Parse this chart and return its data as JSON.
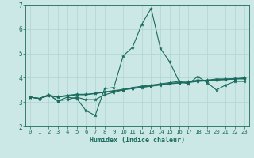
{
  "title": "",
  "xlabel": "Humidex (Indice chaleur)",
  "xlim": [
    -0.5,
    23.5
  ],
  "ylim": [
    2,
    7
  ],
  "yticks": [
    2,
    3,
    4,
    5,
    6,
    7
  ],
  "xticks": [
    0,
    1,
    2,
    3,
    4,
    5,
    6,
    7,
    8,
    9,
    10,
    11,
    12,
    13,
    14,
    15,
    16,
    17,
    18,
    19,
    20,
    21,
    22,
    23
  ],
  "bg_color": "#cce8e6",
  "line_color": "#1a6b5e",
  "grid_color": "#afd4d0",
  "lines": [
    {
      "x": [
        0,
        1,
        2,
        3,
        4,
        5,
        6,
        7,
        8,
        9,
        10,
        11,
        12,
        13,
        14,
        15,
        16,
        17,
        18,
        19,
        20,
        21,
        22,
        23
      ],
      "y": [
        3.2,
        3.15,
        3.3,
        3.05,
        3.2,
        3.15,
        2.65,
        2.45,
        3.55,
        3.6,
        4.9,
        5.25,
        6.2,
        6.85,
        5.2,
        4.65,
        3.85,
        3.75,
        4.05,
        3.8,
        3.5,
        3.7,
        3.85,
        3.85
      ]
    },
    {
      "x": [
        0,
        1,
        2,
        3,
        4,
        5,
        6,
        7,
        8,
        9,
        10,
        11,
        12,
        13,
        14,
        15,
        16,
        17,
        18,
        19,
        20,
        21,
        22,
        23
      ],
      "y": [
        3.2,
        3.15,
        3.3,
        3.05,
        3.1,
        3.2,
        3.1,
        3.1,
        3.3,
        3.4,
        3.5,
        3.6,
        3.65,
        3.7,
        3.75,
        3.8,
        3.85,
        3.85,
        3.9,
        3.9,
        3.95,
        3.95,
        3.95,
        4.0
      ]
    },
    {
      "x": [
        0,
        1,
        2,
        3,
        4,
        5,
        6,
        7,
        8,
        9,
        10,
        11,
        12,
        13,
        14,
        15,
        16,
        17,
        18,
        19,
        20,
        21,
        22,
        23
      ],
      "y": [
        3.2,
        3.15,
        3.25,
        3.2,
        3.25,
        3.3,
        3.3,
        3.35,
        3.4,
        3.45,
        3.5,
        3.55,
        3.6,
        3.65,
        3.7,
        3.75,
        3.78,
        3.8,
        3.85,
        3.87,
        3.9,
        3.92,
        3.95,
        3.95
      ]
    },
    {
      "x": [
        0,
        1,
        2,
        3,
        4,
        5,
        6,
        7,
        8,
        9,
        10,
        11,
        12,
        13,
        14,
        15,
        16,
        17,
        18,
        19,
        20,
        21,
        22,
        23
      ],
      "y": [
        3.2,
        3.15,
        3.28,
        3.22,
        3.28,
        3.32,
        3.32,
        3.36,
        3.42,
        3.47,
        3.52,
        3.57,
        3.62,
        3.67,
        3.72,
        3.77,
        3.8,
        3.82,
        3.87,
        3.89,
        3.92,
        3.94,
        3.97,
        3.97
      ]
    }
  ],
  "xlabel_fontsize": 6.0,
  "tick_fontsize": 5.2,
  "marker_size": 3.0,
  "line_width": 0.8
}
